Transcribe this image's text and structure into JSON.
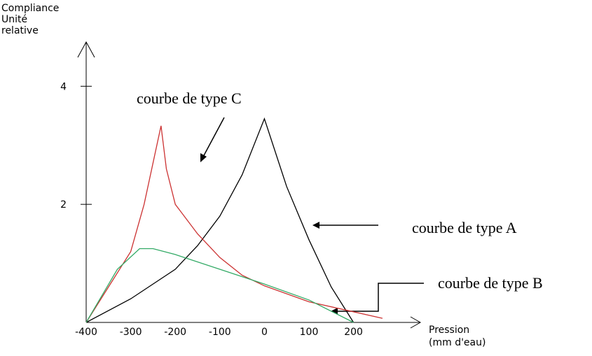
{
  "chart_data": {
    "type": "line",
    "ylabel": [
      "Compliance",
      "Unité",
      "relative"
    ],
    "xlabel": [
      "Pression",
      "(mm d'eau)"
    ],
    "annotations": [
      "courbe de type C",
      "courbe de type A",
      "courbe de type B"
    ],
    "xlim": [
      -400,
      350
    ],
    "ylim": [
      0,
      4.75
    ],
    "xticks": [
      -400,
      -300,
      -200,
      -100,
      0,
      100,
      200
    ],
    "yticks": [
      2,
      4
    ],
    "series": [
      {
        "color": "#000000",
        "x": [
          -400,
          -300,
          -200,
          -150,
          -100,
          -50,
          0,
          50,
          100,
          150,
          200
        ],
        "values": [
          0,
          0.4,
          0.9,
          1.3,
          1.8,
          2.5,
          3.45,
          2.3,
          1.4,
          0.6,
          0
        ]
      },
      {
        "color": "#cc3333",
        "x": [
          -400,
          -350,
          -300,
          -270,
          -250,
          -232,
          -220,
          -200,
          -150,
          -100,
          -50,
          0,
          100,
          200,
          265
        ],
        "values": [
          0,
          0.6,
          1.2,
          2.0,
          2.7,
          3.33,
          2.6,
          2.0,
          1.5,
          1.1,
          0.8,
          0.62,
          0.35,
          0.18,
          0.07
        ]
      },
      {
        "color": "#33aa66",
        "x": [
          -400,
          -330,
          -280,
          -250,
          -200,
          -100,
          0,
          100,
          200
        ],
        "values": [
          0,
          0.9,
          1.25,
          1.25,
          1.15,
          0.9,
          0.65,
          0.38,
          0
        ]
      }
    ]
  }
}
